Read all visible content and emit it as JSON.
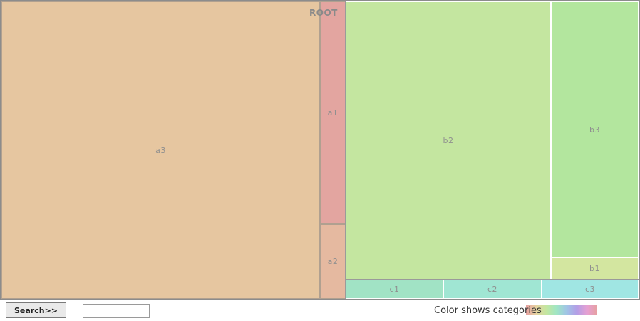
{
  "chart_data": {
    "type": "treemap",
    "root": "ROOT",
    "nodes": [
      {
        "name": "a3",
        "group": "a",
        "value": 187,
        "color": "#e6c6a0"
      },
      {
        "name": "a1",
        "group": "a",
        "value": 11.2,
        "color": "#e3a5a0"
      },
      {
        "name": "a2",
        "group": "a",
        "value": 3.7,
        "color": "#e5b9a0"
      },
      {
        "name": "b2",
        "group": "b",
        "value": 113,
        "color": "#c4e6a0"
      },
      {
        "name": "b3",
        "group": "b",
        "value": 44.1,
        "color": "#b3e69e"
      },
      {
        "name": "b1",
        "group": "b",
        "value": 3.9,
        "color": "#d3e6a0"
      },
      {
        "name": "c1",
        "group": "c",
        "value": 3.5,
        "color": "#a1e3c5"
      },
      {
        "name": "c2",
        "group": "c",
        "value": 3.5,
        "color": "#a0e6d3"
      },
      {
        "name": "c3",
        "group": "c",
        "value": 3.5,
        "color": "#a0e6e3"
      }
    ]
  },
  "controls": {
    "search_label": "Search>>",
    "search_value": ""
  },
  "legend": {
    "label": "Color shows categories",
    "gradient_colors": [
      "#e6a0a0",
      "#e6d3a0",
      "#c4e6a0",
      "#a0e6c4",
      "#a0c4e6",
      "#b39ee6",
      "#e6a0d3",
      "#e6a0a0"
    ]
  }
}
